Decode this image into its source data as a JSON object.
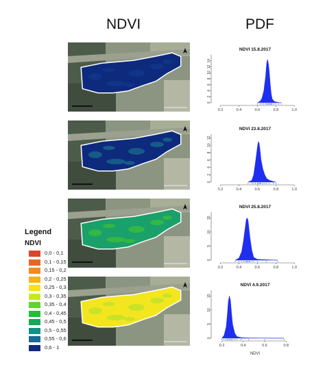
{
  "headers": {
    "ndvi": "NDVI",
    "pdf": "PDF"
  },
  "legend": {
    "title": "Legend",
    "subtitle": "NDVI",
    "items": [
      {
        "label": "0,0 - 0,1",
        "color": "#d9472b"
      },
      {
        "label": "0,1 - 0,15",
        "color": "#e5682a"
      },
      {
        "label": "0,15 - 0,2",
        "color": "#ef8c22"
      },
      {
        "label": "0,2 - 0,25",
        "color": "#f5b21c"
      },
      {
        "label": "0,25 - 0,3",
        "color": "#f7e21b"
      },
      {
        "label": "0,3 - 0,35",
        "color": "#c7e82a"
      },
      {
        "label": "0,35 - 0,4",
        "color": "#62d22c"
      },
      {
        "label": "0,4 - 0,45",
        "color": "#1fbf38"
      },
      {
        "label": "0,45 - 0,5",
        "color": "#17a85a"
      },
      {
        "label": "0,5 - 0,55",
        "color": "#0f9187"
      },
      {
        "label": "0,55 - 0,6",
        "color": "#1a6b8e"
      },
      {
        "label": "0,6 - 1",
        "color": "#112a7e"
      }
    ]
  },
  "maps": [
    {
      "fill": "#0d2a7d",
      "secondary": "#12388c"
    },
    {
      "fill": "#0d2a7d",
      "secondary": "#1a6b8e"
    },
    {
      "fill": "#1aa06a",
      "secondary": "#3cbf3a"
    },
    {
      "fill": "#f3e61f",
      "secondary": "#b9e22c"
    }
  ],
  "chart_data": [
    {
      "type": "area",
      "title": "NDVI 15.8.2017",
      "xlabel": "",
      "xlim": [
        0.1,
        1.05
      ],
      "ylim": [
        0,
        16
      ],
      "xticks": [
        "0.2",
        "0.4",
        "0.6",
        "0.8",
        "1.0"
      ],
      "yticks": [
        "0",
        "2",
        "4",
        "6",
        "8",
        "10",
        "12",
        "14"
      ],
      "color": "#1f2ff0",
      "x": [
        0.6,
        0.63,
        0.65,
        0.67,
        0.69,
        0.7,
        0.71,
        0.72,
        0.73,
        0.74,
        0.75,
        0.76,
        0.78,
        0.8,
        0.83,
        0.86
      ],
      "y": [
        0,
        0.5,
        1.5,
        4,
        9,
        13,
        14.5,
        13,
        10,
        6,
        3,
        1.3,
        0.5,
        0.25,
        0.1,
        0
      ]
    },
    {
      "type": "area",
      "title": "NDVI 23.8.2017",
      "xlabel": "",
      "xlim": [
        0.1,
        1.05
      ],
      "ylim": [
        0,
        13
      ],
      "xticks": [
        "0.2",
        "0.4",
        "0.6",
        "0.8",
        "1.0"
      ],
      "yticks": [
        "0",
        "2",
        "4",
        "6",
        "8",
        "10",
        "12"
      ],
      "color": "#1f2ff0",
      "x": [
        0.5,
        0.54,
        0.56,
        0.58,
        0.6,
        0.61,
        0.62,
        0.63,
        0.64,
        0.66,
        0.68,
        0.7,
        0.73,
        0.77,
        0.8
      ],
      "y": [
        0,
        0.5,
        2,
        5.5,
        9.5,
        11,
        10.5,
        8.5,
        6,
        3.5,
        2,
        1,
        0.5,
        0.2,
        0
      ]
    },
    {
      "type": "area",
      "title": "NDVI 25.8.2017",
      "xlabel": "",
      "xlim": [
        0.1,
        1.05
      ],
      "ylim": [
        0,
        17
      ],
      "xticks": [
        "0.2",
        "0.4",
        "0.6",
        "0.8",
        "1.0"
      ],
      "yticks": [
        "0",
        "5",
        "10",
        "15"
      ],
      "color": "#1f2ff0",
      "x": [
        0.36,
        0.4,
        0.43,
        0.45,
        0.47,
        0.48,
        0.49,
        0.5,
        0.51,
        0.52,
        0.54,
        0.56,
        0.6,
        0.7,
        0.82
      ],
      "y": [
        0,
        0.7,
        3,
        7,
        12,
        14.5,
        15,
        14,
        11,
        8,
        3.5,
        1,
        0.3,
        0.15,
        0
      ]
    },
    {
      "type": "area",
      "title": "NDVI 4.9.2017",
      "xlabel": "NDVI",
      "xlim": [
        0.1,
        0.92
      ],
      "ylim": [
        0,
        17
      ],
      "xticks": [
        "0.2",
        "0.4",
        "0.6",
        "0.8"
      ],
      "yticks": [
        "0",
        "5",
        "10",
        "15"
      ],
      "color": "#1f2ff0",
      "x": [
        0.2,
        0.22,
        0.24,
        0.25,
        0.26,
        0.27,
        0.28,
        0.29,
        0.3,
        0.32,
        0.34,
        0.38,
        0.45,
        0.6,
        0.78
      ],
      "y": [
        0,
        1,
        4,
        8,
        13,
        15,
        13.5,
        9,
        5,
        1.8,
        0.6,
        0.2,
        0.1,
        0.05,
        0
      ]
    }
  ]
}
